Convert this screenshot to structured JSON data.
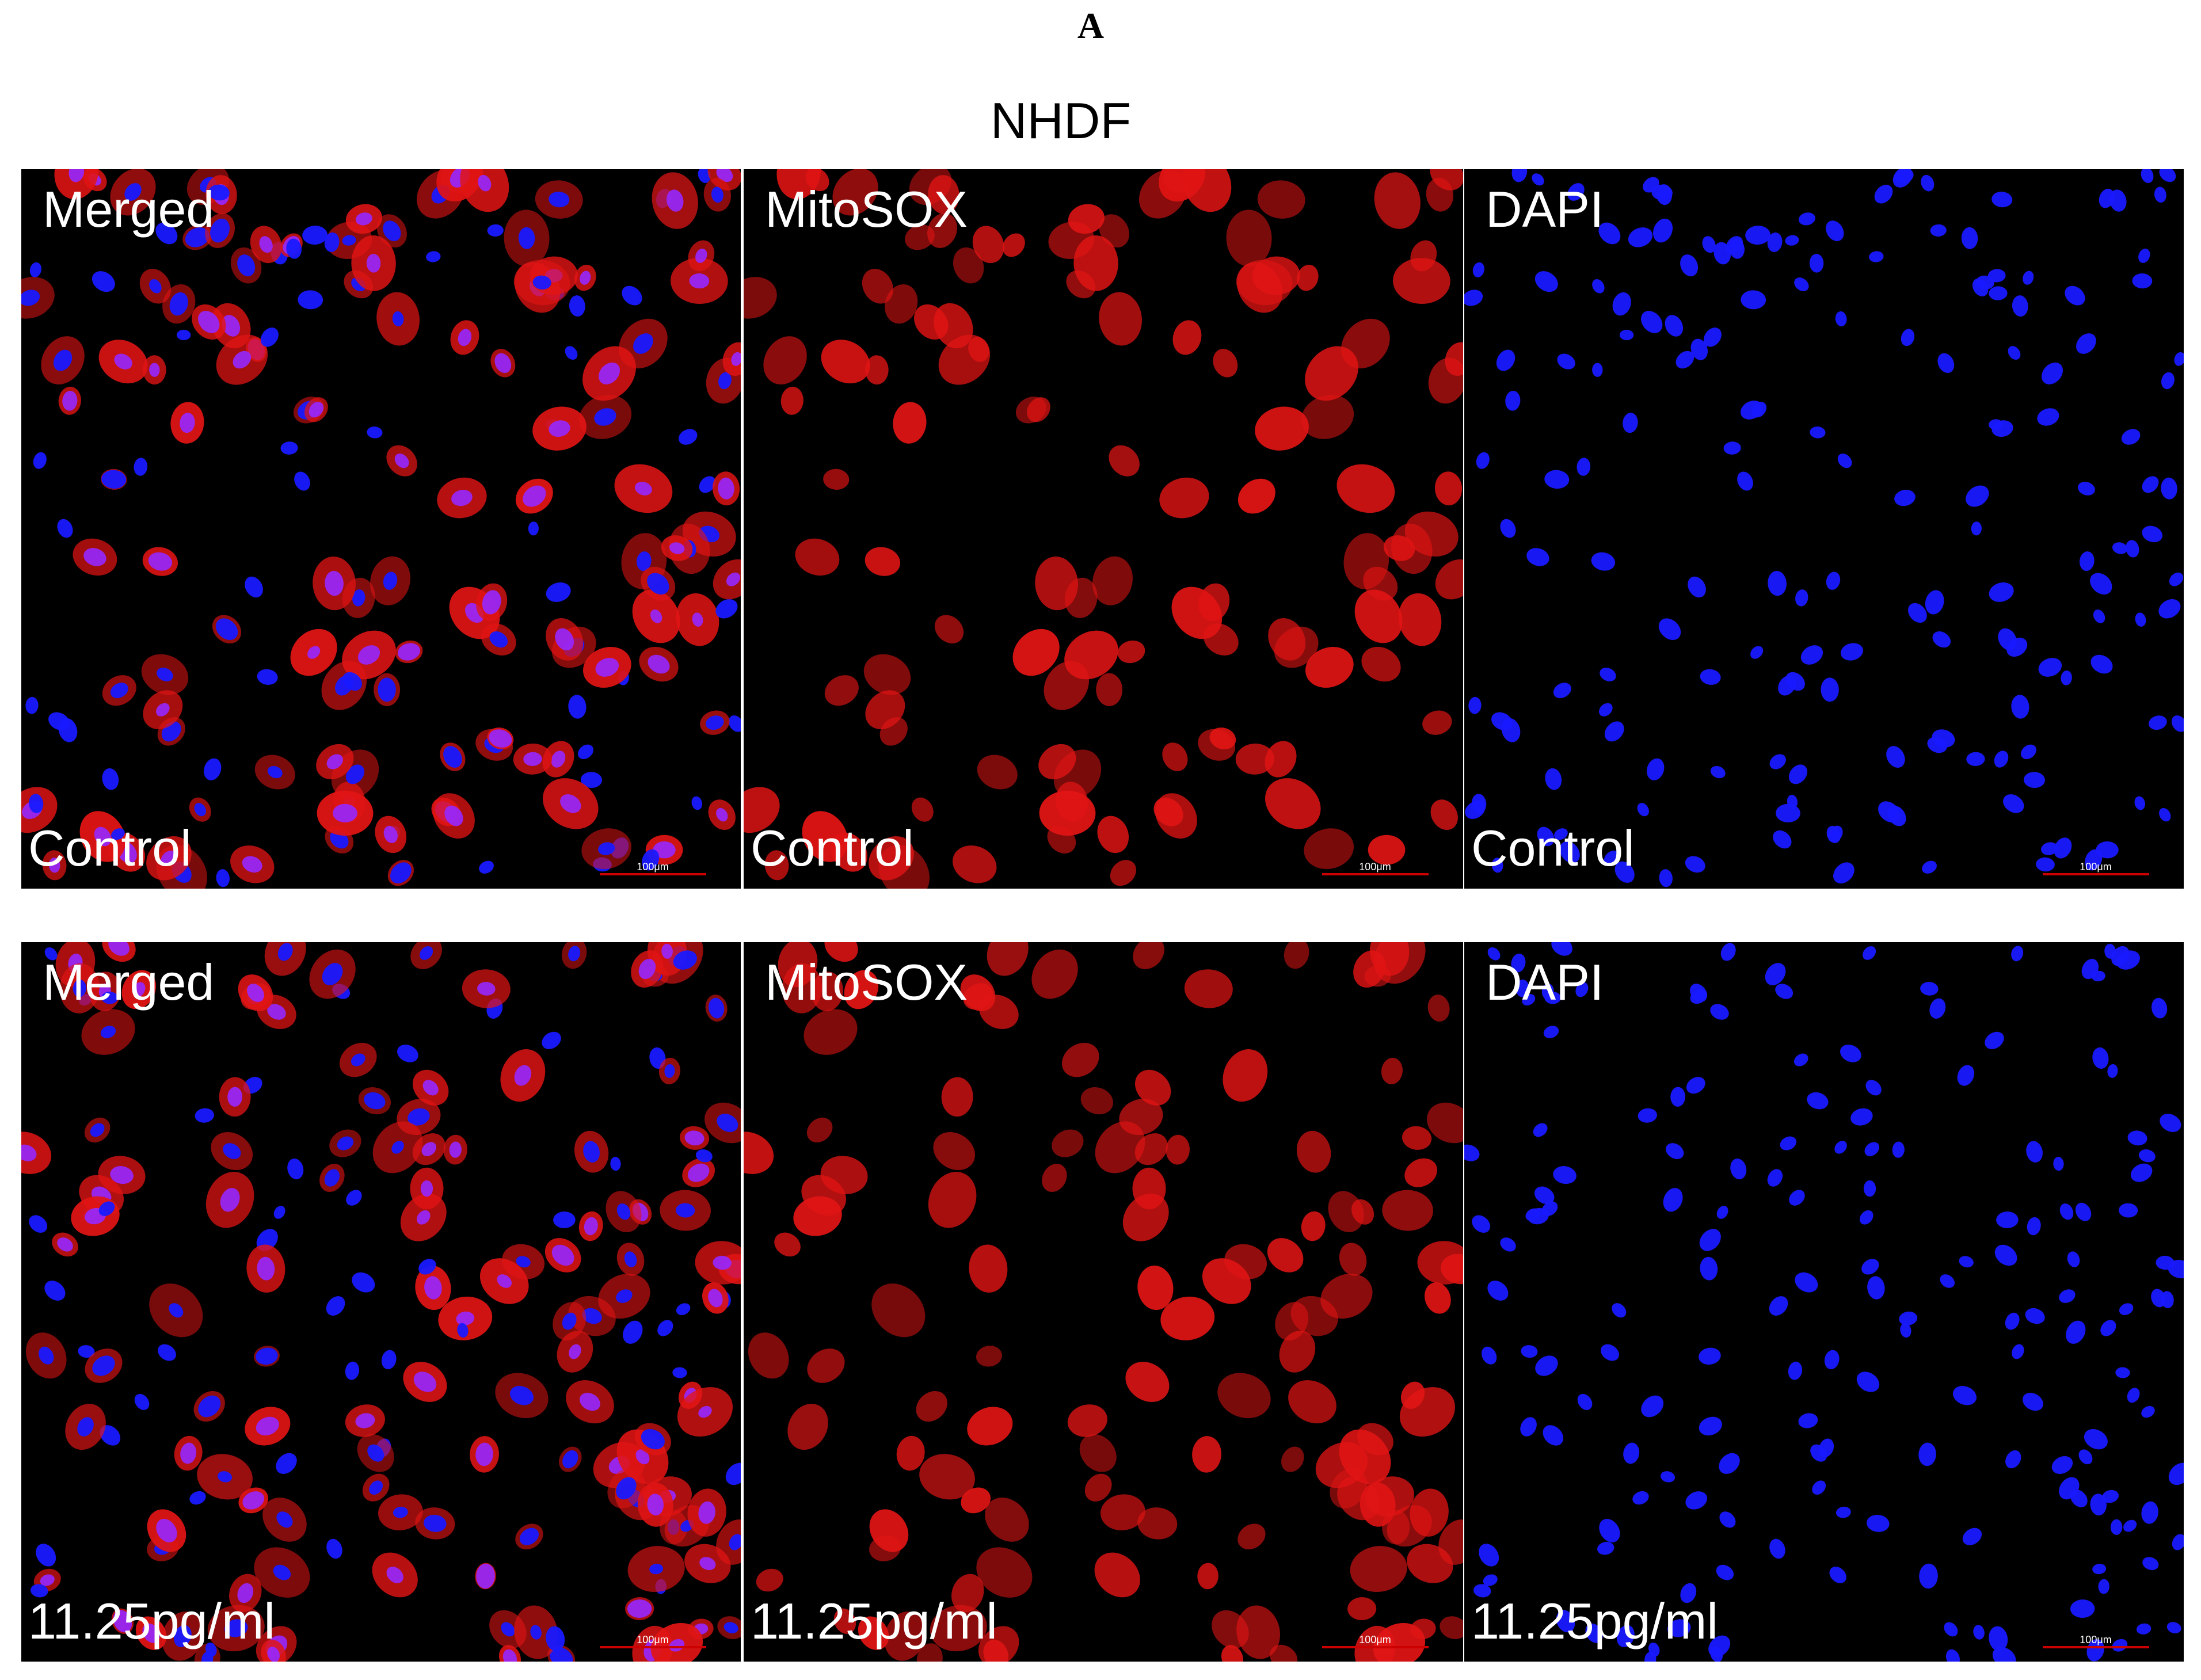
{
  "panel_label": "A",
  "title": "NHDF",
  "scale_bar": "100μm",
  "rows": [
    {
      "condition": "Control",
      "panels": [
        {
          "channel": "Merged"
        },
        {
          "channel": "MitoSOX"
        },
        {
          "channel": "DAPI"
        }
      ]
    },
    {
      "condition": "11.25pg/ml",
      "panels": [
        {
          "channel": "Merged"
        },
        {
          "channel": "MitoSOX"
        },
        {
          "channel": "DAPI"
        }
      ]
    }
  ]
}
